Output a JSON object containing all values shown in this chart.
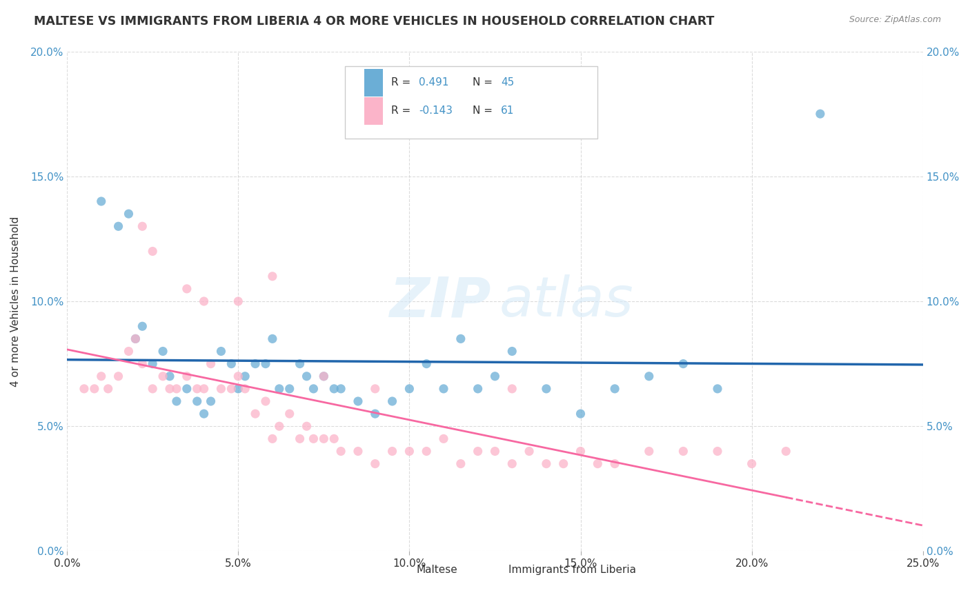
{
  "title": "MALTESE VS IMMIGRANTS FROM LIBERIA 4 OR MORE VEHICLES IN HOUSEHOLD CORRELATION CHART",
  "source": "Source: ZipAtlas.com",
  "ylabel": "4 or more Vehicles in Household",
  "xlim": [
    0.0,
    0.25
  ],
  "ylim": [
    0.0,
    0.2
  ],
  "xticks": [
    0.0,
    0.05,
    0.1,
    0.15,
    0.2,
    0.25
  ],
  "yticks": [
    0.0,
    0.05,
    0.1,
    0.15,
    0.2
  ],
  "xtick_labels": [
    "0.0%",
    "5.0%",
    "10.0%",
    "15.0%",
    "20.0%",
    "25.0%"
  ],
  "ytick_labels": [
    "0.0%",
    "5.0%",
    "10.0%",
    "15.0%",
    "20.0%"
  ],
  "right_ytick_labels": [
    "0.0%",
    "5.0%",
    "10.0%",
    "15.0%",
    "20.0%"
  ],
  "maltese_color": "#6baed6",
  "liberia_color": "#fbb4c9",
  "line_maltese_color": "#2166ac",
  "line_liberia_color": "#f768a1",
  "legend_R_maltese": "0.491",
  "legend_N_maltese": "45",
  "legend_R_liberia": "-0.143",
  "legend_N_liberia": "61",
  "watermark_zip": "ZIP",
  "watermark_atlas": "atlas",
  "maltese_scatter_x": [
    0.01,
    0.015,
    0.018,
    0.02,
    0.022,
    0.025,
    0.028,
    0.03,
    0.032,
    0.035,
    0.038,
    0.04,
    0.042,
    0.045,
    0.048,
    0.05,
    0.052,
    0.055,
    0.058,
    0.06,
    0.062,
    0.065,
    0.068,
    0.07,
    0.072,
    0.075,
    0.078,
    0.08,
    0.085,
    0.09,
    0.095,
    0.1,
    0.105,
    0.11,
    0.115,
    0.12,
    0.125,
    0.13,
    0.14,
    0.15,
    0.16,
    0.17,
    0.18,
    0.19,
    0.22
  ],
  "maltese_scatter_y": [
    0.14,
    0.13,
    0.135,
    0.085,
    0.09,
    0.075,
    0.08,
    0.07,
    0.06,
    0.065,
    0.06,
    0.055,
    0.06,
    0.08,
    0.075,
    0.065,
    0.07,
    0.075,
    0.075,
    0.085,
    0.065,
    0.065,
    0.075,
    0.07,
    0.065,
    0.07,
    0.065,
    0.065,
    0.06,
    0.055,
    0.06,
    0.065,
    0.075,
    0.065,
    0.085,
    0.065,
    0.07,
    0.08,
    0.065,
    0.055,
    0.065,
    0.07,
    0.075,
    0.065,
    0.175
  ],
  "liberia_scatter_x": [
    0.005,
    0.008,
    0.01,
    0.012,
    0.015,
    0.018,
    0.02,
    0.022,
    0.025,
    0.028,
    0.03,
    0.032,
    0.035,
    0.038,
    0.04,
    0.042,
    0.045,
    0.048,
    0.05,
    0.052,
    0.055,
    0.058,
    0.06,
    0.062,
    0.065,
    0.068,
    0.07,
    0.072,
    0.075,
    0.078,
    0.08,
    0.085,
    0.09,
    0.095,
    0.1,
    0.105,
    0.11,
    0.115,
    0.12,
    0.125,
    0.13,
    0.135,
    0.14,
    0.145,
    0.15,
    0.155,
    0.16,
    0.17,
    0.18,
    0.19,
    0.2,
    0.21,
    0.022,
    0.025,
    0.035,
    0.04,
    0.05,
    0.06,
    0.075,
    0.09,
    0.13
  ],
  "liberia_scatter_y": [
    0.065,
    0.065,
    0.07,
    0.065,
    0.07,
    0.08,
    0.085,
    0.075,
    0.065,
    0.07,
    0.065,
    0.065,
    0.07,
    0.065,
    0.065,
    0.075,
    0.065,
    0.065,
    0.07,
    0.065,
    0.055,
    0.06,
    0.045,
    0.05,
    0.055,
    0.045,
    0.05,
    0.045,
    0.045,
    0.045,
    0.04,
    0.04,
    0.035,
    0.04,
    0.04,
    0.04,
    0.045,
    0.035,
    0.04,
    0.04,
    0.035,
    0.04,
    0.035,
    0.035,
    0.04,
    0.035,
    0.035,
    0.04,
    0.04,
    0.04,
    0.035,
    0.04,
    0.13,
    0.12,
    0.105,
    0.1,
    0.1,
    0.11,
    0.07,
    0.065,
    0.065
  ]
}
